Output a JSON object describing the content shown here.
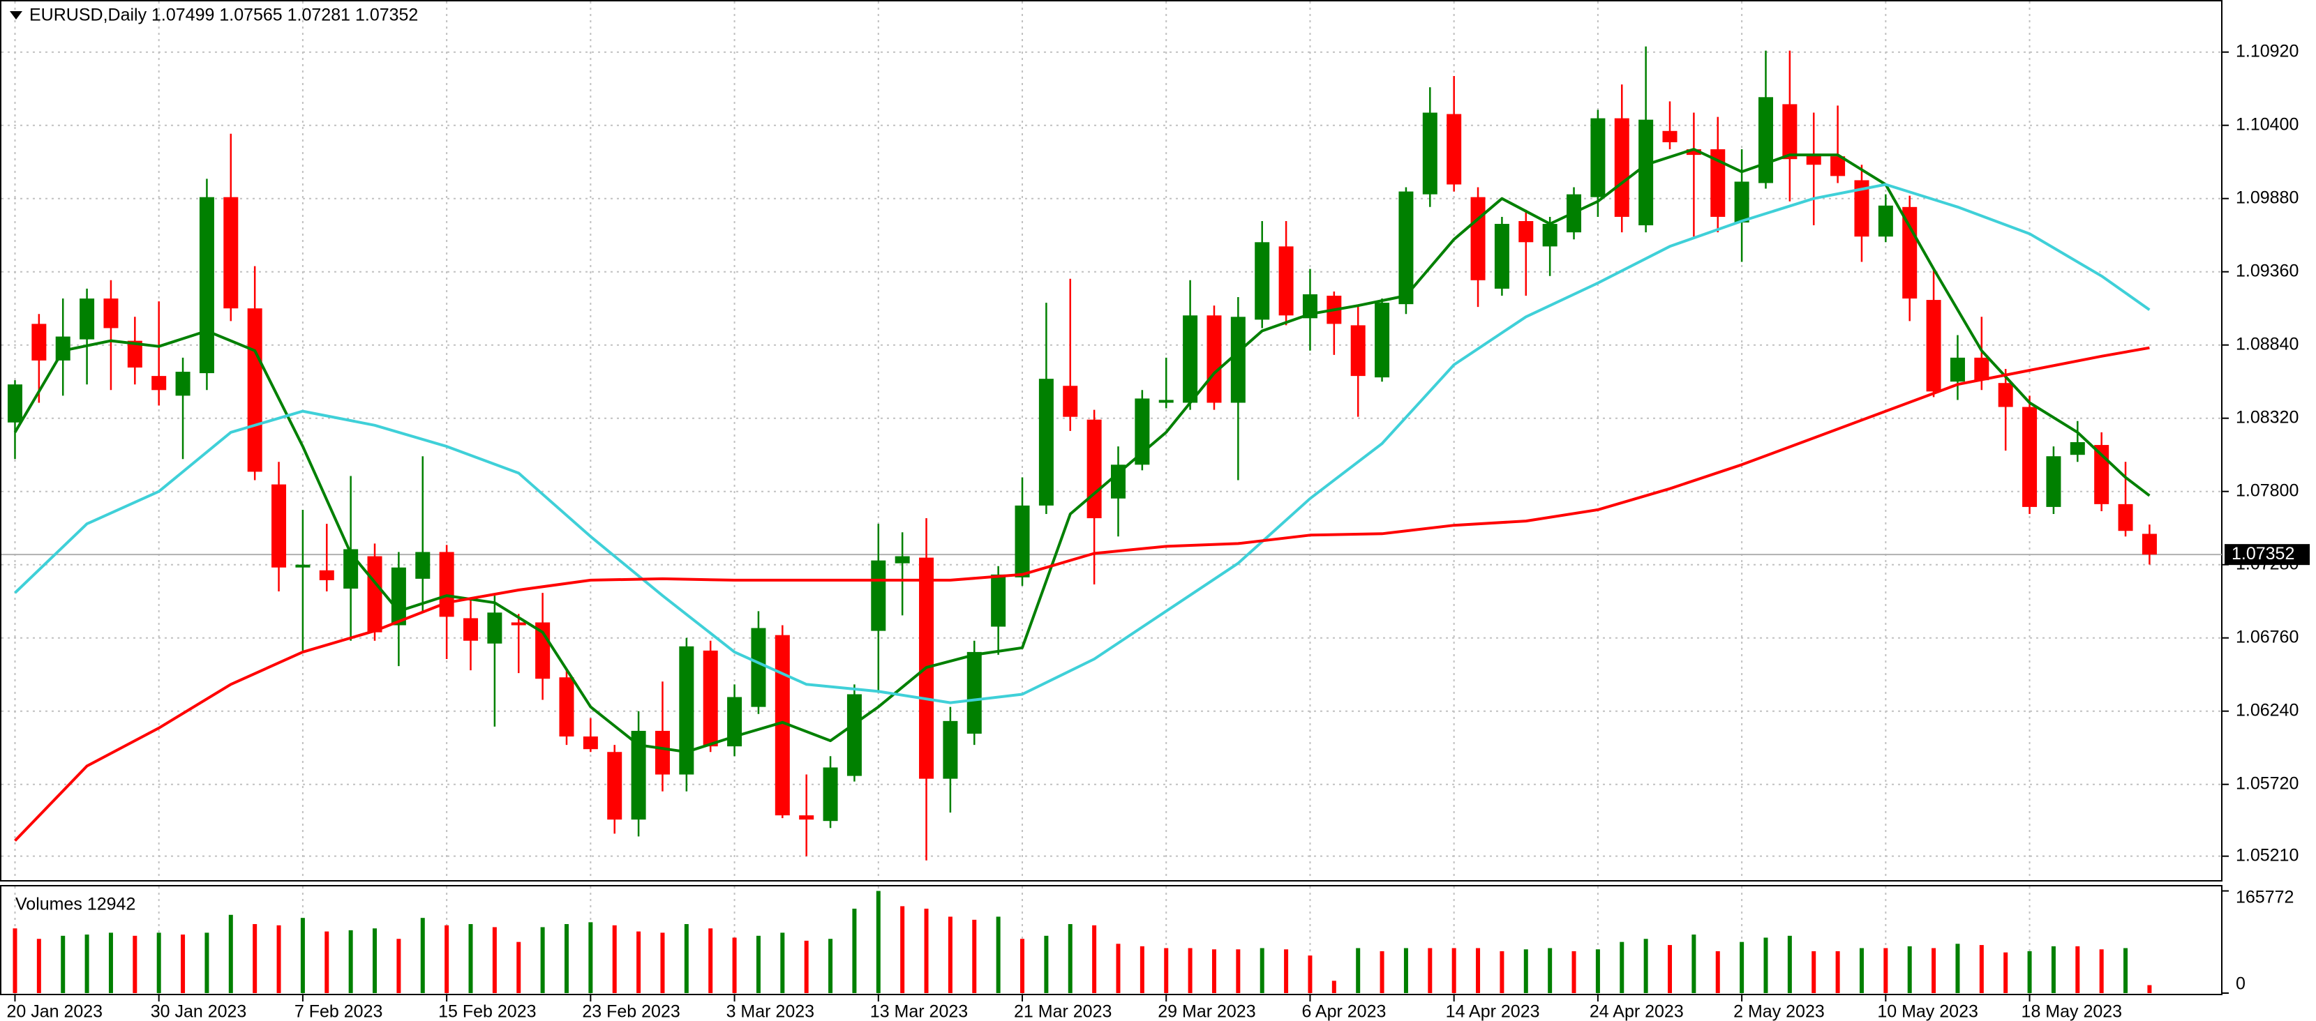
{
  "chart_data": [
    {
      "type": "candlestick",
      "title": "EURUSD,Daily  1.07499 1.07565 1.07281 1.07352",
      "categories": [
        "20 Jan 2023",
        null,
        null,
        null,
        null,
        null,
        "30 Jan 2023",
        null,
        null,
        null,
        null,
        null,
        "7 Feb 2023",
        null,
        null,
        null,
        null,
        null,
        "15 Feb 2023",
        null,
        null,
        null,
        null,
        null,
        "23 Feb 2023",
        null,
        null,
        null,
        null,
        null,
        "3 Mar 2023",
        null,
        null,
        null,
        null,
        null,
        "13 Mar 2023",
        null,
        null,
        null,
        null,
        null,
        "21 Mar 2023",
        null,
        null,
        null,
        null,
        null,
        "29 Mar 2023",
        null,
        null,
        null,
        null,
        null,
        "6 Apr 2023",
        null,
        null,
        null,
        null,
        null,
        "14 Apr 2023",
        null,
        null,
        null,
        null,
        null,
        "24 Apr 2023",
        null,
        null,
        null,
        null,
        null,
        "2 May 2023",
        null,
        null,
        null,
        null,
        null,
        "10 May 2023",
        null,
        null,
        null,
        null,
        null,
        "18 May 2023",
        null,
        null,
        null,
        null,
        null
      ],
      "open": [
        1.0829,
        1.0899,
        1.0873,
        1.0888,
        1.0917,
        1.0887,
        1.0862,
        1.0848,
        1.0864,
        1.0989,
        1.091,
        1.0785,
        1.0726,
        1.0724,
        1.0711,
        1.0734,
        1.0685,
        1.0718,
        1.0737,
        1.069,
        1.0672,
        1.0687,
        1.0687,
        1.0648,
        1.0606,
        1.0595,
        1.0547,
        1.061,
        1.0579,
        1.0667,
        1.0599,
        1.0627,
        1.0678,
        1.055,
        1.0546,
        1.0578,
        1.0681,
        1.0729,
        1.0733,
        1.0576,
        1.0608,
        1.0684,
        1.0719,
        1.077,
        1.0855,
        1.0831,
        1.0775,
        1.0799,
        1.0843,
        1.0843,
        1.0905,
        1.0843,
        1.0902,
        1.0954,
        1.0903,
        1.0919,
        1.0898,
        1.0861,
        1.0913,
        1.0991,
        1.1048,
        1.0989,
        1.0924,
        1.0972,
        1.0954,
        1.0964,
        1.0989,
        1.1045,
        1.0969,
        1.1036,
        1.1023,
        1.1023,
        1.0971,
        1.0999,
        1.1055,
        1.1019,
        1.1018,
        1.1001,
        1.0961,
        1.0982,
        1.0916,
        1.0858,
        1.0875,
        1.0857,
        1.084,
        1.0769,
        1.0806,
        1.0813,
        1.0771,
        1.07499
      ],
      "high": [
        1.0859,
        1.0906,
        1.0917,
        1.0924,
        1.093,
        1.0904,
        1.0915,
        1.0875,
        1.1002,
        1.1034,
        1.094,
        1.0801,
        1.0767,
        1.0757,
        1.0791,
        1.0743,
        1.0737,
        1.0805,
        1.0742,
        1.0704,
        1.0706,
        1.0693,
        1.0708,
        1.0653,
        1.0619,
        1.06,
        1.0624,
        1.0645,
        1.0676,
        1.0674,
        1.0643,
        1.0695,
        1.0685,
        1.0579,
        1.0592,
        1.0643,
        1.0757,
        1.0751,
        1.0761,
        1.0627,
        1.0674,
        1.0727,
        1.079,
        1.0914,
        1.0931,
        1.0838,
        1.0812,
        1.0852,
        1.0875,
        1.093,
        1.0912,
        1.0918,
        1.0972,
        1.0972,
        1.0938,
        1.0922,
        1.0912,
        1.0917,
        1.0996,
        1.1067,
        1.1075,
        1.0996,
        1.0975,
        1.098,
        1.0975,
        1.0996,
        1.1051,
        1.1069,
        1.1096,
        1.1057,
        1.1049,
        1.1046,
        1.1023,
        1.1093,
        1.1093,
        1.1049,
        1.1054,
        1.1012,
        1.0991,
        1.099,
        1.0938,
        1.0891,
        1.0904,
        1.0867,
        1.0848,
        1.0812,
        1.083,
        1.0822,
        1.0801,
        1.07565
      ],
      "low": [
        1.0803,
        1.0843,
        1.0848,
        1.0856,
        1.0852,
        1.0856,
        1.0841,
        1.0803,
        1.0852,
        1.0901,
        1.0788,
        1.0709,
        1.0667,
        1.0709,
        1.0674,
        1.0674,
        1.0656,
        1.0695,
        1.0661,
        1.0653,
        1.0613,
        1.0651,
        1.0632,
        1.06,
        1.0595,
        1.0537,
        1.0535,
        1.0567,
        1.0567,
        1.0595,
        1.0592,
        1.0622,
        1.0548,
        1.0521,
        1.0541,
        1.0574,
        1.0637,
        1.0692,
        1.0518,
        1.0552,
        1.06,
        1.0664,
        1.0713,
        1.0764,
        1.0823,
        1.0714,
        1.0748,
        1.0795,
        1.0839,
        1.0838,
        1.0838,
        1.0788,
        1.0896,
        1.0898,
        1.088,
        1.0877,
        1.0833,
        1.0858,
        1.0906,
        1.0982,
        1.0993,
        1.0911,
        1.0919,
        1.0919,
        1.0933,
        1.0959,
        1.0975,
        1.0964,
        1.0964,
        1.1023,
        1.0961,
        1.0964,
        1.0943,
        1.0995,
        1.0986,
        1.0969,
        1.0999,
        1.0943,
        1.0957,
        1.0901,
        1.0847,
        1.0845,
        1.0852,
        1.0809,
        1.0764,
        1.0764,
        1.0801,
        1.0766,
        1.0748,
        1.07281
      ],
      "close": [
        1.0856,
        1.0873,
        1.089,
        1.0917,
        1.0896,
        1.0868,
        1.0852,
        1.0865,
        1.0989,
        1.091,
        1.0794,
        1.0726,
        1.0728,
        1.0717,
        1.0739,
        1.068,
        1.0726,
        1.0737,
        1.0691,
        1.0674,
        1.0694,
        1.0685,
        1.0647,
        1.0606,
        1.0597,
        1.0547,
        1.061,
        1.0579,
        1.067,
        1.0599,
        1.0634,
        1.0683,
        1.055,
        1.0547,
        1.0584,
        1.0636,
        1.0731,
        1.0734,
        1.0576,
        1.0617,
        1.0666,
        1.0721,
        1.077,
        1.086,
        1.0833,
        1.0761,
        1.0799,
        1.0846,
        1.0845,
        1.0905,
        1.0843,
        1.0904,
        1.0957,
        1.0905,
        1.092,
        1.0899,
        1.0862,
        1.0914,
        1.0993,
        1.1049,
        1.0998,
        1.093,
        1.097,
        1.0957,
        1.097,
        1.0991,
        1.1045,
        1.0975,
        1.1044,
        1.1028,
        1.1019,
        1.0975,
        1.1,
        1.106,
        1.1016,
        1.1012,
        1.1004,
        1.0961,
        1.0983,
        1.0917,
        1.0851,
        1.0875,
        1.0859,
        1.084,
        1.0769,
        1.0805,
        1.0815,
        1.0771,
        1.0752,
        1.07352
      ],
      "up_color": "#008000",
      "down_color": "#ff0000",
      "series": [
        {
          "color": "#008000",
          "x": [
            0,
            2,
            4,
            6,
            8,
            10,
            12,
            14,
            16,
            18,
            20,
            22,
            24,
            26,
            28,
            30,
            32,
            34,
            36,
            38,
            40,
            42,
            44,
            46,
            48,
            50,
            52,
            54,
            56,
            58,
            60,
            62,
            64,
            66,
            68,
            70,
            72,
            74,
            76,
            78,
            80,
            82,
            84,
            86,
            88,
            89
          ],
          "values": [
            1.0822,
            1.088,
            1.0887,
            1.0883,
            1.0894,
            1.088,
            1.0812,
            1.0736,
            1.0695,
            1.0706,
            1.0701,
            1.068,
            1.0627,
            1.06,
            1.0595,
            1.0606,
            1.0616,
            1.0603,
            1.0627,
            1.0655,
            1.0664,
            1.0669,
            1.0764,
            1.0793,
            1.0822,
            1.0864,
            1.0894,
            1.0906,
            1.0912,
            1.0919,
            1.0959,
            1.0988,
            1.097,
            1.0986,
            1.1012,
            1.1023,
            1.1007,
            1.1019,
            1.1019,
            1.0998,
            1.0938,
            1.088,
            1.0843,
            1.0822,
            1.079,
            1.0777
          ]
        },
        {
          "color": "#3fd0d8",
          "x": [
            0,
            3,
            6,
            9,
            12,
            15,
            18,
            21,
            24,
            27,
            30,
            33,
            36,
            39,
            42,
            45,
            48,
            51,
            54,
            57,
            60,
            63,
            66,
            69,
            72,
            75,
            78,
            81,
            84,
            87,
            89
          ],
          "values": [
            1.0708,
            1.0757,
            1.078,
            1.0822,
            1.0837,
            1.0827,
            1.0812,
            1.0793,
            1.0748,
            1.0706,
            1.0666,
            1.0643,
            1.0638,
            1.063,
            1.0636,
            1.0661,
            1.0695,
            1.0729,
            1.0775,
            1.0814,
            1.087,
            1.0904,
            1.0928,
            1.0954,
            1.0972,
            1.0988,
            1.0998,
            1.0982,
            1.0963,
            1.0933,
            1.0909
          ]
        },
        {
          "color": "#ff0000",
          "x": [
            0,
            3,
            6,
            9,
            12,
            15,
            18,
            21,
            24,
            27,
            30,
            33,
            36,
            39,
            42,
            45,
            48,
            51,
            54,
            57,
            60,
            63,
            66,
            69,
            72,
            75,
            78,
            81,
            84,
            87,
            89
          ],
          "values": [
            1.0532,
            1.0585,
            1.0612,
            1.0643,
            1.0666,
            1.0681,
            1.0701,
            1.071,
            1.0717,
            1.0718,
            1.0717,
            1.0717,
            1.0717,
            1.0717,
            1.0721,
            1.0736,
            1.0741,
            1.0743,
            1.0749,
            1.075,
            1.0756,
            1.0759,
            1.0767,
            1.0782,
            1.0799,
            1.0818,
            1.0837,
            1.0856,
            1.0866,
            1.0876,
            1.0882
          ]
        }
      ],
      "ylim": [
        1.0504,
        1.1128
      ],
      "yticks": [
        {
          "value": 1.0521,
          "label": "1.05210"
        },
        {
          "value": 1.0572,
          "label": "1.05720"
        },
        {
          "value": 1.0624,
          "label": "1.06240"
        },
        {
          "value": 1.0676,
          "label": "1.06760"
        },
        {
          "value": 1.0728,
          "label": "1.07280"
        },
        {
          "value": 1.078,
          "label": "1.07800"
        },
        {
          "value": 1.0832,
          "label": "1.08320"
        },
        {
          "value": 1.0884,
          "label": "1.08840"
        },
        {
          "value": 1.0936,
          "label": "1.09360"
        },
        {
          "value": 1.0988,
          "label": "1.09880"
        },
        {
          "value": 1.104,
          "label": "1.10400"
        },
        {
          "value": 1.1092,
          "label": "1.10920"
        }
      ],
      "grid": true,
      "last_price": {
        "value": 1.07352,
        "label": "1.07352"
      }
    },
    {
      "type": "bar",
      "title": "Volumes 12942",
      "values": [
        105000,
        88000,
        93000,
        95000,
        98000,
        93000,
        98000,
        95000,
        98000,
        127000,
        112000,
        110000,
        122000,
        100000,
        102000,
        105000,
        88000,
        122000,
        110000,
        112000,
        107000,
        83000,
        107000,
        112000,
        115000,
        110000,
        100000,
        98000,
        112000,
        105000,
        90000,
        93000,
        98000,
        85000,
        88000,
        137000,
        165772,
        141000,
        137000,
        124000,
        119000,
        124000,
        88000,
        93000,
        112000,
        110000,
        80000,
        76000,
        73000,
        73000,
        71000,
        71000,
        73000,
        71000,
        61000,
        20000,
        73000,
        68000,
        73000,
        73000,
        73000,
        73000,
        68000,
        71000,
        73000,
        68000,
        71000,
        83000,
        88000,
        78000,
        95000,
        68000,
        83000,
        90000,
        93000,
        68000,
        68000,
        73000,
        73000,
        76000,
        73000,
        80000,
        78000,
        66000,
        68000,
        76000,
        76000,
        71000,
        73000,
        12942
      ],
      "up_color": "#008000",
      "down_color": "#ff0000",
      "ylim": [
        0,
        172000
      ],
      "yticks": [
        0,
        165772
      ]
    }
  ]
}
